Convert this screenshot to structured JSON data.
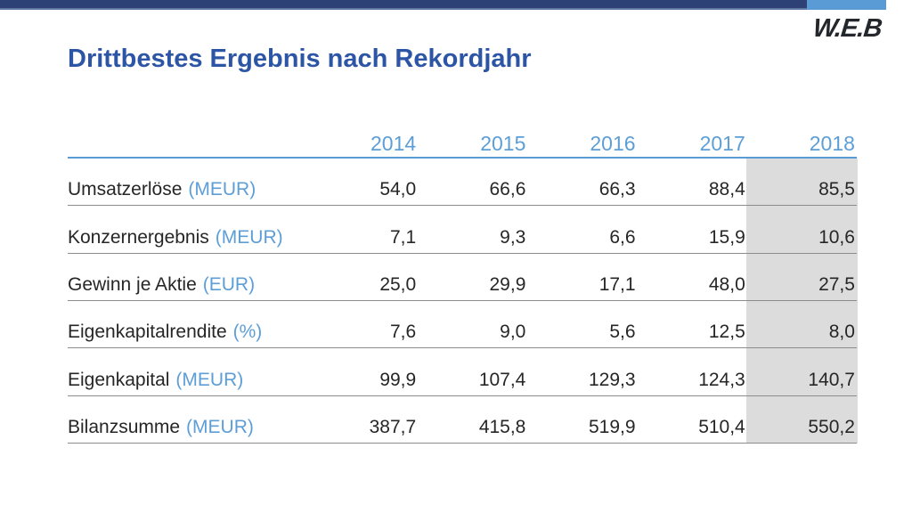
{
  "header": {
    "logo_text": "W.E.B",
    "title": "Drittbestes Ergebnis nach Rekordjahr"
  },
  "colors": {
    "topbar_navy": "#2e4177",
    "topbar_light_blue": "#5b9bd5",
    "title_blue": "#2d55a5",
    "accent_light_blue": "#5d9ed6",
    "text_dark": "#262626",
    "row_line_gray": "#8c8c8c",
    "highlight_column_gray": "#dcdcdc",
    "logo_color": "#24272c"
  },
  "chart_data": {
    "type": "table",
    "title": "Drittbestes Ergebnis nach Rekordjahr",
    "columns": [
      "2014",
      "2015",
      "2016",
      "2017",
      "2018"
    ],
    "highlighted_column": "2018",
    "rows": [
      {
        "label": "Umsatzerlöse",
        "unit": "(MEUR)",
        "values": [
          "54,0",
          "66,6",
          "66,3",
          "88,4",
          "85,5"
        ]
      },
      {
        "label": "Konzernergebnis",
        "unit": "(MEUR)",
        "values": [
          "7,1",
          "9,3",
          "6,6",
          "15,9",
          "10,6"
        ]
      },
      {
        "label": "Gewinn je Aktie",
        "unit": "(EUR)",
        "values": [
          "25,0",
          "29,9",
          "17,1",
          "48,0",
          "27,5"
        ]
      },
      {
        "label": "Eigenkapitalrendite",
        "unit": "(%)",
        "values": [
          "7,6",
          "9,0",
          "5,6",
          "12,5",
          "8,0"
        ]
      },
      {
        "label": "Eigenkapital",
        "unit": "(MEUR)",
        "values": [
          "99,9",
          "107,4",
          "129,3",
          "124,3",
          "140,7"
        ]
      },
      {
        "label": "Bilanzsumme",
        "unit": "(MEUR)",
        "values": [
          "387,7",
          "415,8",
          "519,9",
          "510,4",
          "550,2"
        ]
      }
    ]
  }
}
